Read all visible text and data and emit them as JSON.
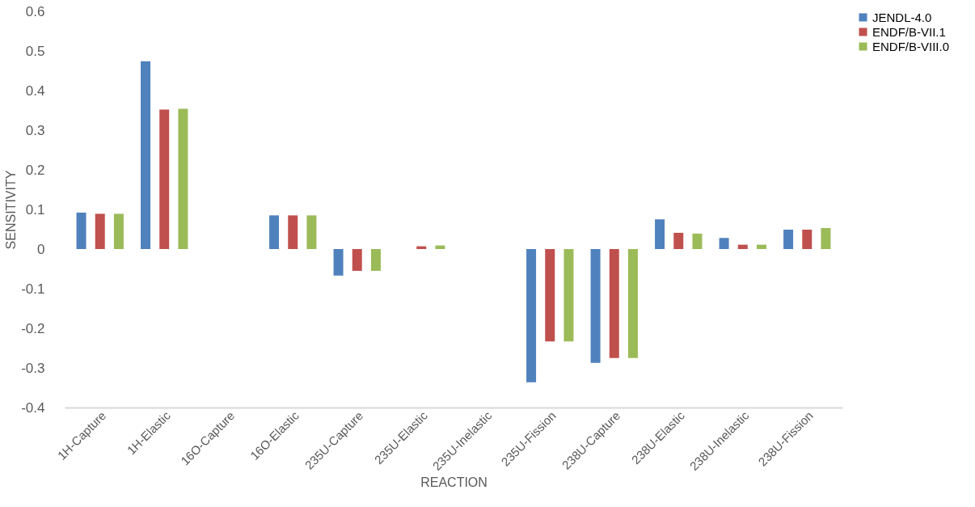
{
  "chart_data": {
    "type": "bar",
    "xlabel": "REACTION",
    "ylabel": "SENSITIVITY",
    "categories": [
      "1H-Capture",
      "1H-Elastic",
      "16O-Capture",
      "16O-Elastic",
      "235U-Capture",
      "235U-Elastic",
      "235U-Inelastic",
      "235U-Fission",
      "238U-Capture",
      "238U-Elastic",
      "238U-Inelastic",
      "238U-Fission"
    ],
    "series": [
      {
        "name": "JENDL-4.0",
        "color": "#4f81bd",
        "values": [
          0.092,
          0.474,
          null,
          0.085,
          -0.067,
          null,
          null,
          -0.336,
          -0.287,
          0.075,
          0.028,
          0.049
        ]
      },
      {
        "name": "ENDF/B-VII.1",
        "color": "#c0504d",
        "values": [
          0.089,
          0.352,
          null,
          0.085,
          -0.055,
          0.007,
          null,
          -0.233,
          -0.275,
          0.041,
          0.011,
          0.049
        ]
      },
      {
        "name": "ENDF/B-VIII.0",
        "color": "#9bbb59",
        "values": [
          0.089,
          0.354,
          null,
          0.085,
          -0.055,
          0.009,
          null,
          -0.233,
          -0.275,
          0.039,
          0.011,
          0.053
        ]
      }
    ],
    "ylim": [
      -0.4,
      0.6
    ],
    "yticks": [
      -0.4,
      -0.3,
      -0.2,
      -0.1,
      0,
      0.1,
      0.2,
      0.3,
      0.4,
      0.5,
      0.6
    ],
    "grid": false,
    "legend": "right"
  }
}
